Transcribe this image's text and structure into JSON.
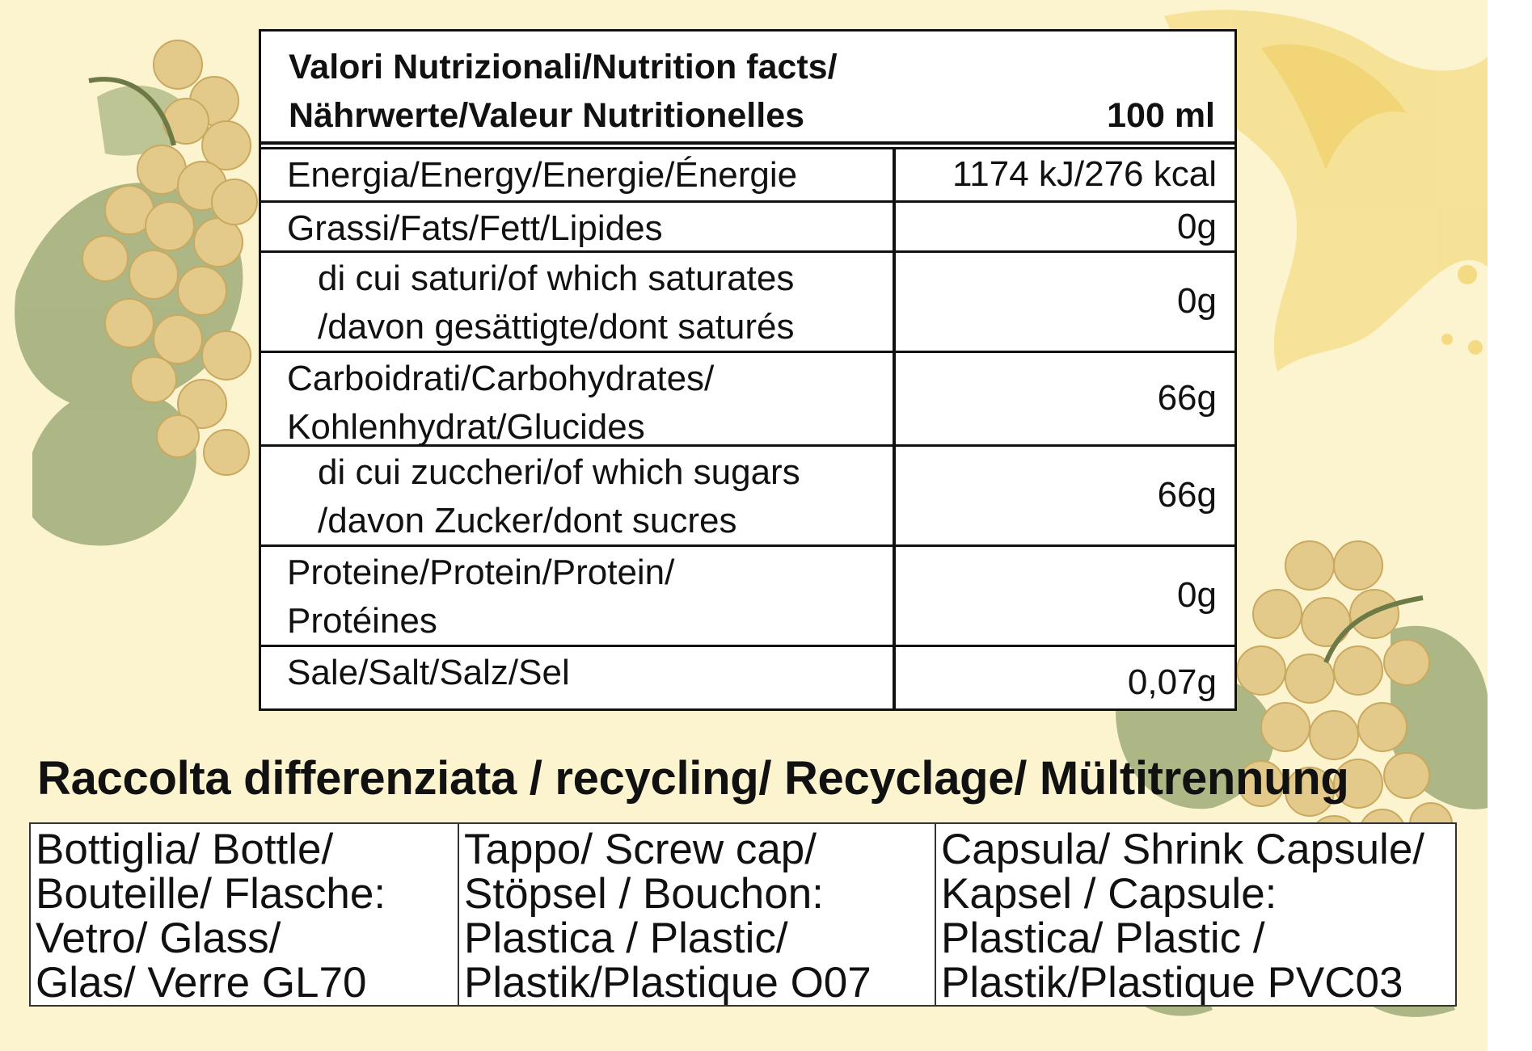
{
  "nutrition": {
    "title_line1": "Valori Nutrizionali/Nutrition facts/",
    "title_line2": "Nährwerte/Valeur Nutritionelles",
    "per_unit": "100 ml",
    "rows": [
      {
        "name_lines": [
          "Energia/Energy/Energie/Énergie"
        ],
        "value": "1174 kJ/276 kcal"
      },
      {
        "name_lines": [
          "Grassi/Fats/Fett/Lipides"
        ],
        "value": "0g"
      },
      {
        "name_lines": [
          "di cui saturi/of which saturates",
          "/davon gesättigte/dont saturés"
        ],
        "value": "0g"
      },
      {
        "name_lines": [
          "Carboidrati/Carbohydrates/",
          "Kohlenhydrat/Glucides"
        ],
        "value": "66g"
      },
      {
        "name_lines": [
          "di cui zuccheri/of which sugars",
          "/davon Zucker/dont sucres"
        ],
        "value": "66g"
      },
      {
        "name_lines": [
          "Proteine/Protein/Protein/",
          "Protéines"
        ],
        "value": "0g"
      },
      {
        "name_lines": [
          "Sale/Salt/Salz/Sel"
        ],
        "value": "0,07g"
      }
    ]
  },
  "recycling": {
    "title": "Raccolta differenziata / recycling/ Recyclage/ Mültitrennung",
    "items": [
      {
        "lines": [
          "Bottiglia/ Bottle/",
          "Bouteille/ Flasche:",
          "Vetro/ Glass/",
          "Glas/ Verre  GL70"
        ]
      },
      {
        "lines": [
          "Tappo/ Screw cap/",
          "Stöpsel / Bouchon:",
          "Plastica / Plastic/",
          "Plastik/Plastique  O07"
        ]
      },
      {
        "lines": [
          "Capsula/ Shrink Capsule/",
          "Kapsel / Capsule:",
          "Plastica/ Plastic /",
          "Plastik/Plastique  PVC03"
        ]
      }
    ]
  },
  "decoration": {
    "background_color": "#fcf4cf",
    "grape_color": "#e2c98a",
    "leaf_color": "#9fb07a",
    "splash_color": "#f2d97a"
  }
}
